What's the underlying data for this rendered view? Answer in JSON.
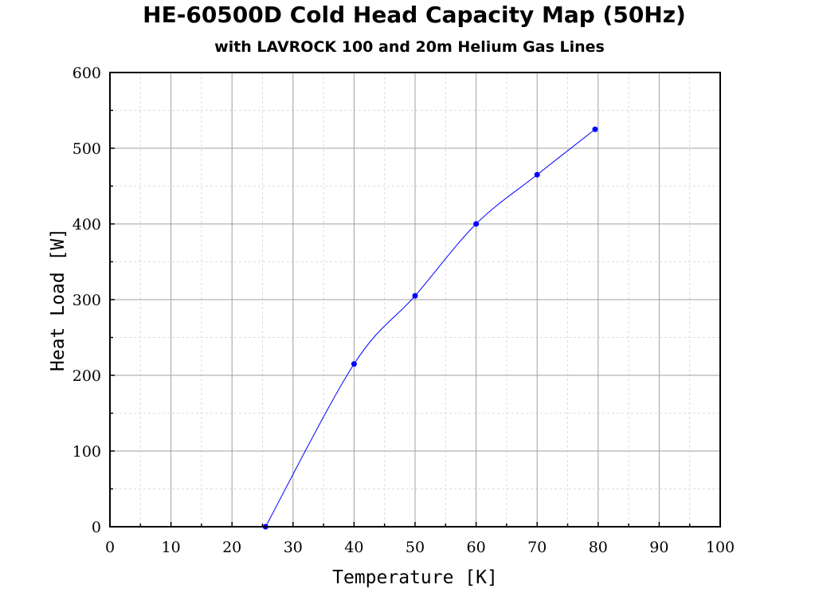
{
  "chart_data": {
    "type": "line",
    "title": "HE-60500D Cold Head Capacity Map (50Hz)",
    "subtitle": "with LAVROCK 100 and 20m Helium Gas Lines",
    "xlabel": "Temperature [K]",
    "ylabel": "Heat Load [W]",
    "xlim": [
      0,
      100
    ],
    "ylim": [
      0,
      600
    ],
    "xticks": [
      0,
      10,
      20,
      30,
      40,
      50,
      60,
      70,
      80,
      90,
      100
    ],
    "yticks": [
      0,
      100,
      200,
      300,
      400,
      500,
      600
    ],
    "grid": true,
    "minor_grid": true,
    "series": [
      {
        "color": "#0000ff",
        "x": [
          25.5,
          40,
          50,
          60,
          70,
          79.5
        ],
        "y": [
          0,
          215,
          305,
          400,
          465,
          525
        ]
      }
    ]
  }
}
